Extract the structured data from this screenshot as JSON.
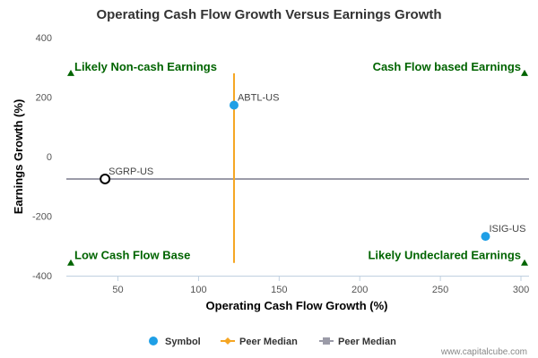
{
  "chart_data": {
    "type": "scatter",
    "title": "Operating Cash Flow Growth Versus Earnings Growth",
    "xlabel": "Operating Cash Flow Growth (%)",
    "ylabel": "Earnings Growth (%)",
    "xlim": [
      18,
      305
    ],
    "ylim": [
      -400,
      400
    ],
    "xticks": [
      50,
      100,
      150,
      200,
      250,
      300
    ],
    "yticks": [
      -400,
      -200,
      0,
      200,
      400
    ],
    "grid": false,
    "points": [
      {
        "name": "ABTL-US",
        "x": 122,
        "y": 173,
        "style": "filled",
        "color": "#1f9fe6"
      },
      {
        "name": "ISIG-US",
        "x": 278,
        "y": -268,
        "style": "filled",
        "color": "#1f9fe6"
      },
      {
        "name": "SGRP-US",
        "x": 42,
        "y": -75,
        "style": "hollow",
        "color": "#000000"
      }
    ],
    "peer_median_x": {
      "value": 122,
      "y_range": [
        -357,
        280
      ],
      "color": "#f5a623"
    },
    "peer_median_y": {
      "value": -75,
      "color": "#9b9ba8"
    },
    "quadrant_labels": {
      "top_left": "Likely Non-cash Earnings",
      "top_right": "Cash Flow based Earnings",
      "bottom_left": "Low Cash Flow Base",
      "bottom_right": "Likely Undeclared Earnings"
    },
    "quadrant_color": "#006400",
    "legend": [
      {
        "label": "Symbol",
        "marker": "circle",
        "color": "#1f9fe6"
      },
      {
        "label": "Peer Median",
        "marker": "diamond-line",
        "color": "#f5a623"
      },
      {
        "label": "Peer Median",
        "marker": "square-line",
        "color": "#9b9ba8"
      }
    ],
    "legend_position": "bottom-center",
    "credit": "www.capitalcube.com"
  }
}
